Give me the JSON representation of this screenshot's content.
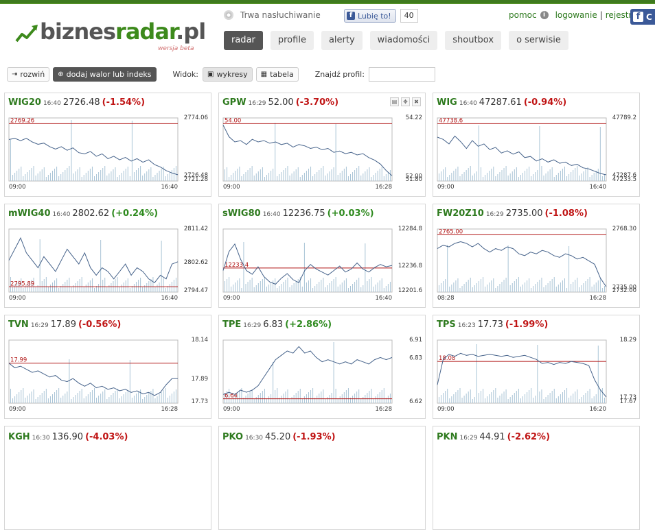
{
  "header": {
    "logo_part1": "biznes",
    "logo_part2": "radar",
    "logo_part3": ".pl",
    "logo_sub": "wersja beta",
    "listening": "Trwa nasłuchiwanie",
    "like_label": "Lubię to!",
    "like_count": "40",
    "links": {
      "help": "pomoc",
      "login": "logowanie",
      "register": "rejestracja",
      "fb": "C"
    }
  },
  "nav": [
    "radar",
    "profile",
    "alerty",
    "wiadomości",
    "shoutbox",
    "o serwisie"
  ],
  "toolbar": {
    "expand": "rozwiń",
    "add": "dodaj walor lub indeks",
    "view_label": "Widok:",
    "charts": "wykresy",
    "table": "tabela",
    "find_label": "Znajdź profil:"
  },
  "colors": {
    "green": "#2e7a1e",
    "red": "#c01515",
    "line": "#45628a",
    "ref": "#b01515"
  },
  "cards": [
    {
      "sym": "WIG20",
      "time": "16:40",
      "price": "2726.48",
      "chg": "(-1.54%)",
      "dir": "neg",
      "ymax": "2774.06",
      "ymin": "2721.28",
      "last": "2726.48",
      "ref": "2769.26",
      "t0": "09:00",
      "t1": "16:40",
      "chart_data": {
        "type": "line",
        "ylim": [
          2721.28,
          2774.06
        ],
        "ref": 2769.26,
        "values": [
          2756,
          2757,
          2755,
          2757,
          2754,
          2752,
          2753,
          2750,
          2748,
          2750,
          2747,
          2749,
          2745,
          2744,
          2746,
          2742,
          2744,
          2740,
          2742,
          2739,
          2741,
          2738,
          2740,
          2737,
          2739,
          2735,
          2733,
          2730,
          2728,
          2726.48
        ]
      }
    },
    {
      "sym": "GPW",
      "time": "16:29",
      "price": "52.00",
      "chg": "(-3.70%)",
      "dir": "neg",
      "ymax": "54.22",
      "ymin": "51.80",
      "last": "52.00",
      "ref": "54.00",
      "t0": "09:00",
      "t1": "16:28",
      "tools": true,
      "chart_data": {
        "type": "line",
        "ylim": [
          51.8,
          54.22
        ],
        "ref": 54.0,
        "values": [
          53.95,
          53.5,
          53.3,
          53.35,
          53.2,
          53.4,
          53.3,
          53.35,
          53.25,
          53.3,
          53.2,
          53.25,
          53.1,
          53.2,
          53.15,
          53.05,
          53.1,
          53.0,
          53.05,
          52.9,
          52.95,
          52.85,
          52.9,
          52.8,
          52.85,
          52.7,
          52.6,
          52.45,
          52.2,
          52.0
        ]
      }
    },
    {
      "sym": "WIG",
      "time": "16:40",
      "price": "47287.61",
      "chg": "(-0.94%)",
      "dir": "neg",
      "ymax": "47789.2",
      "ymin": "47233.5",
      "last": "47287.6",
      "ref": "47738.6",
      "t0": "09:00",
      "t1": "16:40",
      "chart_data": {
        "type": "line",
        "ylim": [
          47233.5,
          47789.2
        ],
        "ref": 47738.6,
        "values": [
          47620,
          47600,
          47560,
          47630,
          47580,
          47520,
          47590,
          47540,
          47560,
          47510,
          47530,
          47480,
          47500,
          47470,
          47490,
          47440,
          47450,
          47410,
          47430,
          47400,
          47420,
          47390,
          47400,
          47370,
          47380,
          47350,
          47340,
          47320,
          47300,
          47287.61
        ]
      }
    },
    {
      "sym": "mWIG40",
      "time": "16:40",
      "price": "2802.62",
      "chg": "(+0.24%)",
      "dir": "pos",
      "ymax": "2811.42",
      "ymin": "2794.47",
      "last": "2802.62",
      "ref": "2795.89",
      "t0": "09:00",
      "t1": "16:40",
      "chart_data": {
        "type": "line",
        "ylim": [
          2794.47,
          2811.42
        ],
        "ref": 2795.89,
        "values": [
          2803,
          2806,
          2809,
          2805,
          2803,
          2801,
          2804,
          2802,
          2800,
          2803,
          2806,
          2804,
          2802,
          2805,
          2801,
          2799,
          2801,
          2800,
          2798,
          2800,
          2802,
          2799,
          2801,
          2800,
          2798,
          2797,
          2799,
          2798,
          2802,
          2802.62
        ]
      }
    },
    {
      "sym": "sWIG80",
      "time": "16:40",
      "price": "12236.75",
      "chg": "(+0.03%)",
      "dir": "pos",
      "ymax": "12284.8",
      "ymin": "12201.6",
      "last": "12236.8",
      "ref": "12233.4",
      "t0": "09:00",
      "t1": "16:40",
      "chart_data": {
        "type": "line",
        "ylim": [
          12201.6,
          12284.8
        ],
        "ref": 12233.4,
        "values": [
          12230,
          12255,
          12265,
          12245,
          12230,
          12225,
          12235,
          12222,
          12215,
          12212,
          12220,
          12226,
          12218,
          12214,
          12230,
          12238,
          12232,
          12228,
          12224,
          12230,
          12236,
          12228,
          12232,
          12240,
          12232,
          12228,
          12234,
          12238,
          12235,
          12236.75
        ]
      }
    },
    {
      "sym": "FW20Z10",
      "time": "16:29",
      "price": "2735.00",
      "chg": "(-1.08%)",
      "dir": "neg",
      "ymax": "2768.30",
      "ymin": "2732.00",
      "last": "2735.00",
      "ref": "2765.00",
      "t0": "08:28",
      "t1": "16:28",
      "chart_data": {
        "type": "line",
        "ylim": [
          2732.0,
          2768.3
        ],
        "ref": 2765.0,
        "values": [
          2757,
          2759,
          2758,
          2760,
          2761,
          2760,
          2758,
          2760,
          2757,
          2755,
          2757,
          2756,
          2758,
          2757,
          2754,
          2753,
          2755,
          2754,
          2756,
          2755,
          2753,
          2752,
          2754,
          2753,
          2751,
          2752,
          2750,
          2748,
          2740,
          2735
        ]
      }
    },
    {
      "sym": "TVN",
      "time": "16:29",
      "price": "17.89",
      "chg": "(-0.56%)",
      "dir": "neg",
      "ymax": "18.14",
      "ymin": "17.73",
      "last": "17.89",
      "ref": "17.99",
      "t0": "09:00",
      "t1": "16:28",
      "chart_data": {
        "type": "line",
        "ylim": [
          17.73,
          18.14
        ],
        "ref": 17.99,
        "values": [
          17.99,
          17.96,
          17.97,
          17.95,
          17.93,
          17.94,
          17.92,
          17.9,
          17.91,
          17.88,
          17.87,
          17.89,
          17.86,
          17.84,
          17.86,
          17.83,
          17.84,
          17.82,
          17.83,
          17.81,
          17.82,
          17.8,
          17.81,
          17.79,
          17.8,
          17.78,
          17.8,
          17.85,
          17.89,
          17.89
        ]
      }
    },
    {
      "sym": "TPE",
      "time": "16:29",
      "price": "6.83",
      "chg": "(+2.86%)",
      "dir": "pos",
      "ymax": "6.91",
      "ymin": "6.62",
      "last": "6.83",
      "ref": "6.64",
      "t0": "09:00",
      "t1": "16:28",
      "chart_data": {
        "type": "line",
        "ylim": [
          6.62,
          6.91
        ],
        "ref": 6.64,
        "values": [
          6.66,
          6.67,
          6.66,
          6.68,
          6.67,
          6.68,
          6.7,
          6.74,
          6.78,
          6.82,
          6.84,
          6.86,
          6.85,
          6.88,
          6.85,
          6.86,
          6.83,
          6.81,
          6.82,
          6.81,
          6.8,
          6.81,
          6.8,
          6.82,
          6.81,
          6.8,
          6.82,
          6.83,
          6.82,
          6.83
        ]
      }
    },
    {
      "sym": "TPS",
      "time": "16:23",
      "price": "17.73",
      "chg": "(-1.99%)",
      "dir": "neg",
      "ymax": "18.29",
      "ymin": "17.67",
      "last": "17.73",
      "ref": "18.08",
      "t0": "09:00",
      "t1": "16:20",
      "chart_data": {
        "type": "line",
        "ylim": [
          17.67,
          18.29
        ],
        "ref": 18.08,
        "values": [
          17.85,
          18.1,
          18.15,
          18.13,
          18.16,
          18.14,
          18.15,
          18.13,
          18.14,
          18.15,
          18.14,
          18.13,
          18.14,
          18.12,
          18.13,
          18.14,
          18.12,
          18.1,
          18.06,
          18.07,
          18.05,
          18.07,
          18.06,
          18.08,
          18.07,
          18.06,
          18.04,
          17.9,
          17.8,
          17.73
        ]
      }
    }
  ],
  "partial_row": [
    {
      "sym": "KGH",
      "time": "16:30",
      "price": "136.90",
      "chg": "(-4.03%)"
    },
    {
      "sym": "PKO",
      "time": "16:30",
      "price": "45.20",
      "chg": "(-1.93%)"
    },
    {
      "sym": "PKN",
      "time": "16:29",
      "price": "44.91",
      "chg": "(-2.62%)"
    }
  ]
}
